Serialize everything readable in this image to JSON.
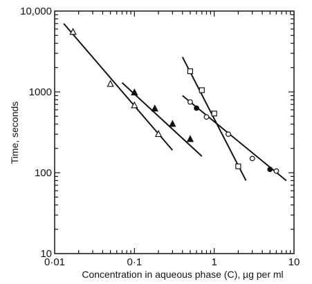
{
  "chart_data": {
    "type": "scatter",
    "scale": "log-log",
    "xlabel": "Concentration in aqueous phase (C), µg per ml",
    "ylabel": "Time, seconds",
    "xlim": [
      0.01,
      10
    ],
    "ylim": [
      10,
      10000
    ],
    "x_tick_labels": [
      {
        "value": 0.01,
        "label": "0·01"
      },
      {
        "value": 0.1,
        "label": "0·1"
      },
      {
        "value": 1,
        "label": "1"
      },
      {
        "value": 10,
        "label": "10"
      }
    ],
    "y_tick_labels": [
      {
        "value": 10,
        "label": "10"
      },
      {
        "value": 100,
        "label": "100"
      },
      {
        "value": 1000,
        "label": "1000"
      },
      {
        "value": 10000,
        "label": "10,000"
      }
    ],
    "series": [
      {
        "marker": "open-triangle",
        "points": [
          [
            0.017,
            5500
          ],
          [
            0.05,
            1250
          ],
          [
            0.1,
            680
          ],
          [
            0.2,
            300
          ]
        ],
        "fit": [
          [
            0.013,
            7000
          ],
          [
            0.3,
            190
          ]
        ]
      },
      {
        "marker": "filled-triangle",
        "points": [
          [
            0.1,
            980
          ],
          [
            0.18,
            620
          ],
          [
            0.3,
            400
          ],
          [
            0.5,
            260
          ]
        ],
        "fit": [
          [
            0.07,
            1300
          ],
          [
            0.7,
            160
          ]
        ]
      },
      {
        "marker": "open-square",
        "points": [
          [
            0.5,
            1800
          ],
          [
            0.7,
            1050
          ],
          [
            1,
            540
          ],
          [
            2,
            120
          ]
        ],
        "fit": [
          [
            0.4,
            2700
          ],
          [
            2.5,
            80
          ]
        ]
      },
      {
        "marker": "open-circle",
        "points": [
          [
            0.5,
            750
          ],
          [
            0.8,
            490
          ],
          [
            1.5,
            300
          ],
          [
            3,
            150
          ],
          [
            6,
            105
          ]
        ],
        "fit": [
          [
            0.4,
            900
          ],
          [
            8,
            80
          ]
        ]
      },
      {
        "marker": "filled-circle",
        "points": [
          [
            0.6,
            630
          ],
          [
            5,
            110
          ]
        ],
        "fit": null
      }
    ]
  }
}
